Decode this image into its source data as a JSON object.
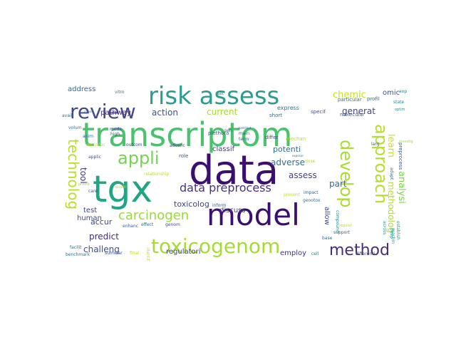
{
  "words": [
    {
      "text": "transcriptom",
      "color": "#4ac16d"
    },
    {
      "text": "data",
      "color": "#3b0f70"
    },
    {
      "text": "model",
      "color": "#3b0f70"
    },
    {
      "text": "tgx",
      "color": "#21a685"
    },
    {
      "text": "risk assess",
      "color": "#2a9d8f"
    },
    {
      "text": "review",
      "color": "#3e4a89"
    },
    {
      "text": "toxicogenom",
      "color": "#a5db36"
    },
    {
      "text": "approach",
      "color": "#b5de2b"
    },
    {
      "text": "develop",
      "color": "#a8db34"
    },
    {
      "text": "technolog",
      "color": "#b8de29"
    },
    {
      "text": "appli",
      "color": "#7ad151"
    },
    {
      "text": "method",
      "color": "#472d7b"
    },
    {
      "text": "carcinogen",
      "color": "#9bd93c"
    },
    {
      "text": "data preprocess",
      "color": "#46337e"
    },
    {
      "text": "chemic",
      "color": "#c2df23"
    },
    {
      "text": "learn",
      "color": "#d0e11c"
    },
    {
      "text": "analysi",
      "color": "#7fd34e"
    },
    {
      "text": "action",
      "color": "#3b528b"
    },
    {
      "text": "current",
      "color": "#a2da37"
    },
    {
      "text": "generat",
      "color": "#3e4989"
    },
    {
      "text": "methodolog",
      "color": "#b0dd2f"
    },
    {
      "text": "challeng",
      "color": "#3c4f8a"
    },
    {
      "text": "predict",
      "color": "#472878"
    },
    {
      "text": "assess",
      "color": "#424086"
    },
    {
      "text": "part",
      "color": "#2f6c8e"
    },
    {
      "text": "adverse",
      "color": "#2c728e"
    },
    {
      "text": "potenti",
      "color": "#2e6e8e"
    },
    {
      "text": "tool",
      "color": "#443a83"
    },
    {
      "text": "accur",
      "color": "#3f4788"
    },
    {
      "text": "toxicolog",
      "color": "#404588"
    },
    {
      "text": "pathway",
      "color": "#4b2c7a"
    },
    {
      "text": "regulatori",
      "color": "#404387"
    },
    {
      "text": "classif",
      "color": "#424186"
    },
    {
      "text": "discuss",
      "color": "#433e85"
    },
    {
      "text": "test",
      "color": "#3f4889"
    },
    {
      "text": "human",
      "color": "#3d4d8a"
    },
    {
      "text": "employ",
      "color": "#46327e"
    },
    {
      "text": "allow",
      "color": "#404688"
    },
    {
      "text": "address",
      "color": "#31688e"
    },
    {
      "text": "omic",
      "color": "#3a548c"
    },
    {
      "text": "express",
      "color": "#2b758e"
    },
    {
      "text": "short",
      "color": "#31668e"
    },
    {
      "text": "specif",
      "color": "#3c508b"
    },
    {
      "text": "molecular",
      "color": "#365d8d"
    },
    {
      "text": "seri",
      "color": "#355f8d"
    },
    {
      "text": "main",
      "color": "#38588c"
    },
    {
      "text": "term",
      "color": "#38598c"
    },
    {
      "text": "differ",
      "color": "#3d4e8a"
    },
    {
      "text": "mechan",
      "color": "#b4de2c"
    },
    {
      "text": "dose",
      "color": "#c0df25"
    },
    {
      "text": "plethora",
      "color": "#3a538b"
    },
    {
      "text": "role",
      "color": "#3b518b"
    },
    {
      "text": "advanc",
      "color": "#433e85"
    },
    {
      "text": "outcom",
      "color": "#404588"
    },
    {
      "text": "high",
      "color": "#3c4f8a"
    },
    {
      "text": "mode",
      "color": "#3e4989"
    },
    {
      "text": "applic",
      "color": "#3b528b"
    },
    {
      "text": "anim",
      "color": "#30698e"
    },
    {
      "text": "volum",
      "color": "#2f6b8e"
    },
    {
      "text": "avail",
      "color": "#2d708e"
    },
    {
      "text": "reproduc",
      "color": "#c8e020"
    },
    {
      "text": "vitro",
      "color": "#2a788e"
    },
    {
      "text": "set",
      "color": "#277f8e"
    },
    {
      "text": "aop",
      "color": "#26828e"
    },
    {
      "text": "state",
      "color": "#25858e"
    },
    {
      "text": "optim",
      "color": "#238a8d"
    },
    {
      "text": "particular",
      "color": "#2a778e"
    },
    {
      "text": "profil",
      "color": "#2c718e"
    },
    {
      "text": "preprocess",
      "color": "#355f8d"
    },
    {
      "text": "larg",
      "color": "#39558c"
    },
    {
      "text": "adapt",
      "color": "#2e6d8e"
    },
    {
      "text": "machin",
      "color": "#20928c"
    },
    {
      "text": "across",
      "color": "#1f968b"
    },
    {
      "text": "establish",
      "color": "#1fa188"
    },
    {
      "text": "deep",
      "color": "#1e9c89"
    },
    {
      "text": "compound",
      "color": "#25848e"
    },
    {
      "text": "genotox",
      "color": "#2d718e"
    },
    {
      "text": "impact",
      "color": "#33638d"
    },
    {
      "text": "present",
      "color": "#bddf26"
    },
    {
      "text": "base",
      "color": "#2b748e"
    },
    {
      "text": "cell",
      "color": "#2d708e"
    },
    {
      "text": "support",
      "color": "#31678e"
    },
    {
      "text": "regulat",
      "color": "#c5e021"
    },
    {
      "text": "differenti",
      "color": "#3d4e8a"
    },
    {
      "text": "inform",
      "color": "#365c8d"
    },
    {
      "text": "genom",
      "color": "#3e4a89"
    },
    {
      "text": "final",
      "color": "#b5de2b"
    },
    {
      "text": "summar",
      "color": "#3a538b"
    },
    {
      "text": "enhanc",
      "color": "#33638d"
    },
    {
      "text": "effect",
      "color": "#2f6b8e"
    },
    {
      "text": "identif",
      "color": "#c2df23"
    },
    {
      "text": "facilit",
      "color": "#2f6c8e"
    },
    {
      "text": "benchmark",
      "color": "#2c728e"
    },
    {
      "text": "care",
      "color": "#3c4f8a"
    },
    {
      "text": "relationship",
      "color": "#b5de2b"
    },
    {
      "text": "qualiti",
      "color": "#b8de29"
    },
    {
      "text": "investig",
      "color": "#a5db36"
    },
    {
      "text": "provid",
      "color": "#9bd93c"
    },
    {
      "text": "contribut",
      "color": "#31688e"
    },
    {
      "text": "consid",
      "color": "#2c728e"
    },
    {
      "text": "exposur",
      "color": "#2a778e"
    }
  ]
}
